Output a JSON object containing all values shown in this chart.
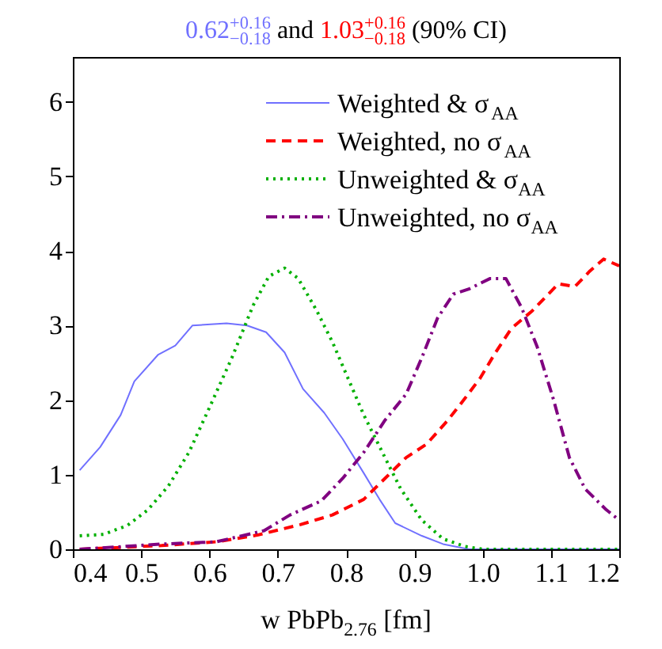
{
  "chart_data": {
    "type": "line",
    "title": "0.62$^{+0.16}$$_{−0.18}$ and 1.03$^{+0.16}$$_{−0.18}$ (90% CI)",
    "xlabel": "w PbPb$_{2.76}$ [fm]",
    "xlim": [
      0.4,
      1.2
    ],
    "xticks": [
      0.4,
      0.5,
      0.6,
      0.7,
      0.8,
      0.9,
      {
        "value": 1.0,
        "label": "1.0"
      },
      1.1,
      1.2
    ],
    "ylim": [
      0,
      6.6
    ],
    "yticks": [
      0,
      1,
      2,
      3,
      4,
      5,
      6
    ],
    "grid": false,
    "legend": "top right",
    "marker": "none",
    "series": [
      {
        "name": "Weighted & σ$_{AA}$",
        "color": "#7070ff",
        "line_style": "solid",
        "x": [
          0.41,
          0.44,
          0.47,
          0.49,
          0.525,
          0.55,
          0.575,
          0.625,
          0.655,
          0.683,
          0.71,
          0.737,
          0.768,
          0.795,
          0.826,
          0.849,
          0.872,
          0.911,
          0.942,
          0.98,
          1.2
        ],
        "values": [
          1.06,
          1.37,
          1.8,
          2.25,
          2.61,
          2.73,
          3.0,
          3.03,
          3.0,
          2.91,
          2.64,
          2.15,
          1.83,
          1.48,
          1.02,
          0.67,
          0.35,
          0.18,
          0.07,
          0,
          0
        ]
      },
      {
        "name": "Weighted, no σ$_{AA}$",
        "color": "#ff0000",
        "line_style": "dashed",
        "x": [
          0.41,
          0.53,
          0.61,
          0.67,
          0.733,
          0.78,
          0.826,
          0.857,
          0.888,
          0.918,
          0.949,
          0.973,
          0.996,
          1.019,
          1.042,
          1.073,
          1.111,
          1.135,
          1.157,
          1.177,
          1.2
        ],
        "values": [
          0,
          0.05,
          0.1,
          0.19,
          0.33,
          0.46,
          0.67,
          0.95,
          1.23,
          1.41,
          1.73,
          2.01,
          2.29,
          2.64,
          2.96,
          3.2,
          3.56,
          3.52,
          3.73,
          3.89,
          3.8
        ]
      },
      {
        "name": "Unweighted & σ$_{AA}$",
        "color": "#00b000",
        "line_style": "dotted",
        "x": [
          0.41,
          0.445,
          0.48,
          0.51,
          0.54,
          0.57,
          0.6,
          0.633,
          0.664,
          0.687,
          0.71,
          0.73,
          0.757,
          0.78,
          0.803,
          0.826,
          0.857,
          0.88,
          0.911,
          0.942,
          0.973,
          1.0,
          1.2
        ],
        "values": [
          0.18,
          0.2,
          0.32,
          0.53,
          0.85,
          1.3,
          1.9,
          2.57,
          3.27,
          3.66,
          3.77,
          3.63,
          3.2,
          2.78,
          2.29,
          1.8,
          1.23,
          0.81,
          0.39,
          0.14,
          0.04,
          0,
          0
        ]
      },
      {
        "name": "Unweighted, no σ$_{AA}$",
        "color": "#800080",
        "line_style": "dashdot",
        "x": [
          0.41,
          0.53,
          0.61,
          0.68,
          0.718,
          0.764,
          0.795,
          0.826,
          0.857,
          0.888,
          0.911,
          0.934,
          0.957,
          0.98,
          1.011,
          1.034,
          1.057,
          1.08,
          1.104,
          1.127,
          1.15,
          1.181,
          1.2
        ],
        "values": [
          0,
          0.07,
          0.1,
          0.25,
          0.46,
          0.65,
          0.95,
          1.3,
          1.73,
          2.08,
          2.57,
          3.1,
          3.42,
          3.49,
          3.63,
          3.63,
          3.24,
          2.71,
          2.0,
          1.23,
          0.81,
          0.53,
          0.39
        ]
      }
    ]
  }
}
